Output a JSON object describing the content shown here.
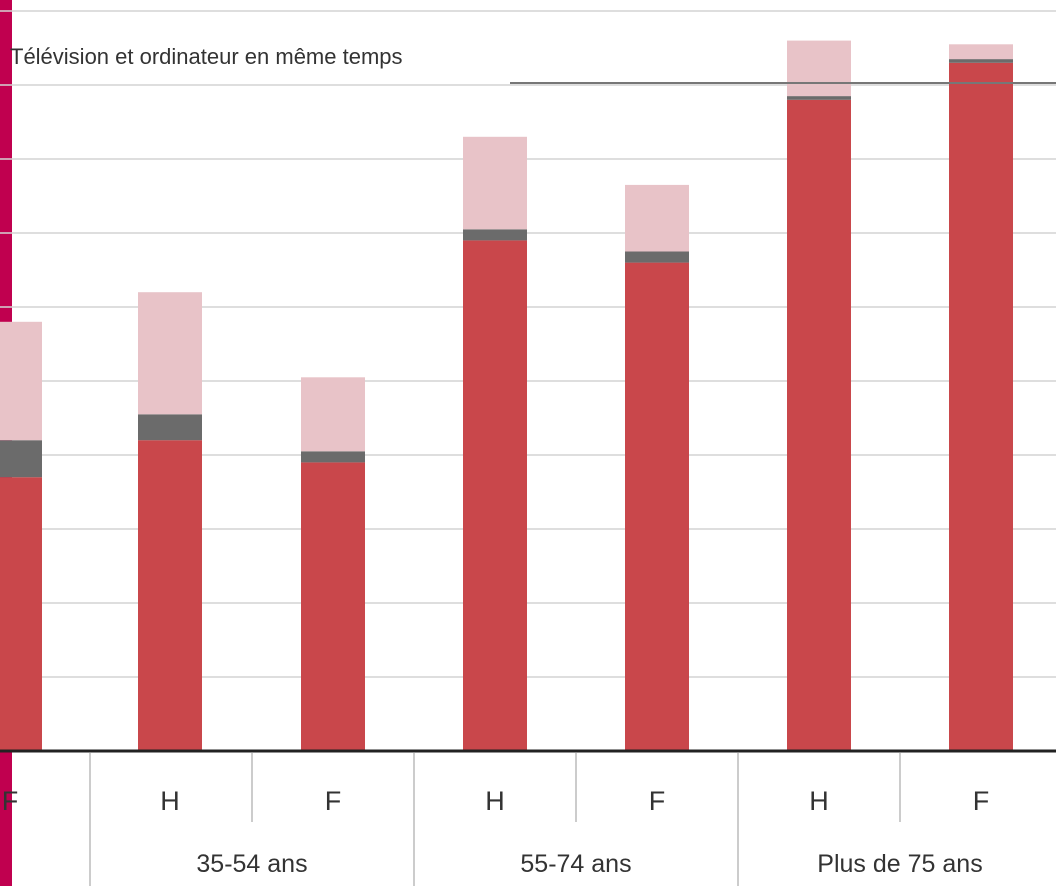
{
  "colors": {
    "accent_bar": "#c0004f",
    "main": "#c9474b",
    "mid": "#6b6b6b",
    "top": "#e8c3c8",
    "grid": "#d4d4d4",
    "axis": "#222222",
    "separator": "#cccccc"
  },
  "chart_data": {
    "type": "bar",
    "stacked": true,
    "title": "",
    "xlabel": "",
    "ylabel": "",
    "ylim": [
      0,
      10
    ],
    "grid": true,
    "legend_visible_label": "Télévision et ordinateur en même temps",
    "age_groups": [
      "",
      "35-54 ans",
      "55-74 ans",
      "Plus de 75 ans"
    ],
    "categories": [
      "F",
      "H",
      "F",
      "H",
      "F",
      "H",
      "F"
    ],
    "group_of_category": [
      0,
      1,
      1,
      2,
      2,
      3,
      3
    ],
    "series": [
      {
        "values": [
          3.7,
          4.2,
          3.9,
          6.9,
          6.6,
          8.8,
          9.3
        ],
        "color_key": "main"
      },
      {
        "values": [
          0.5,
          0.35,
          0.15,
          0.15,
          0.15,
          0.05,
          0.05
        ],
        "color_key": "mid"
      },
      {
        "values": [
          1.6,
          1.65,
          1.0,
          1.25,
          0.9,
          0.75,
          0.2
        ],
        "color_key": "top"
      }
    ]
  }
}
